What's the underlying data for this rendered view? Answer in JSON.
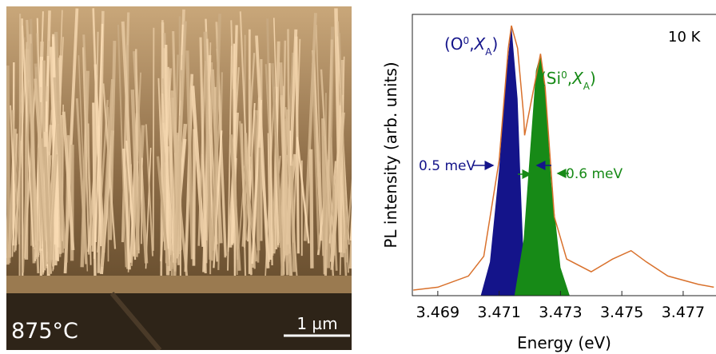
{
  "image": {
    "temperature_label": "875°C",
    "scale_label": "1 µm"
  },
  "chart_data": {
    "type": "line",
    "xlabel": "Energy (eV)",
    "ylabel": "PL intensity (arb. units)",
    "xlim": [
      3.46817,
      3.47807
    ],
    "xticks": [
      3.469,
      3.471,
      3.473,
      3.475,
      3.477
    ],
    "ylim": [
      0,
      1
    ],
    "series": [
      {
        "color": "#d9712c",
        "fill": false,
        "x": [
          3.4682,
          3.469,
          3.47,
          3.4705,
          3.471,
          3.4713,
          3.4714,
          3.4716,
          3.4718,
          3.47183,
          3.4721,
          3.47235,
          3.4725,
          3.4728,
          3.4732,
          3.474,
          3.4747,
          3.4753,
          3.4758,
          3.4765,
          3.4775,
          3.478
        ],
        "values": [
          0.02,
          0.03,
          0.07,
          0.14,
          0.48,
          0.88,
          0.96,
          0.88,
          0.64,
          0.57,
          0.72,
          0.86,
          0.74,
          0.28,
          0.13,
          0.085,
          0.13,
          0.16,
          0.12,
          0.07,
          0.04,
          0.03
        ]
      },
      {
        "color": "#14148a",
        "fill": true,
        "x": [
          3.4704,
          3.4707,
          3.471,
          3.4712,
          3.4714,
          3.4716,
          3.4717,
          3.4718,
          3.4719
        ],
        "values": [
          0,
          0.12,
          0.45,
          0.75,
          0.96,
          0.7,
          0.4,
          0.12,
          0
        ]
      },
      {
        "color": "#178a17",
        "fill": true,
        "x": [
          3.4715,
          3.4718,
          3.472,
          3.4722,
          3.47235,
          3.4725,
          3.4727,
          3.473,
          3.4733
        ],
        "values": [
          0,
          0.2,
          0.5,
          0.8,
          0.86,
          0.74,
          0.4,
          0.1,
          0
        ]
      }
    ],
    "annotations": [
      {
        "parts": [
          "(O",
          "0",
          ",",
          "X",
          "A",
          ")"
        ],
        "color": "#14148a"
      },
      {
        "parts": [
          "(Si",
          "0",
          ",",
          "X",
          "A",
          ")"
        ],
        "color": "#178a17"
      },
      {
        "parts": [
          "10 K"
        ],
        "color": "#000000"
      },
      {
        "parts": [
          "0.5 meV"
        ],
        "color": "#14148a"
      },
      {
        "parts": [
          "0.6 meV"
        ],
        "color": "#178a17"
      }
    ]
  }
}
